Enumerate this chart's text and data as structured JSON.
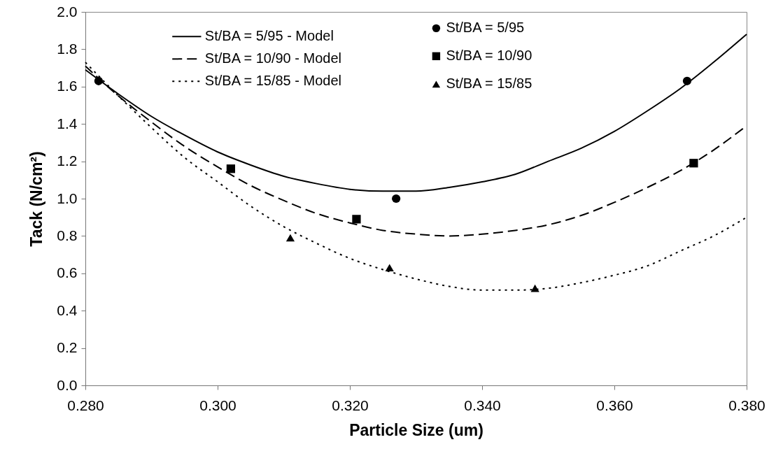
{
  "chart_data": {
    "type": "line",
    "xlabel": "Particle Size (um)",
    "ylabel": "Tack (N/cm²)",
    "xlim": [
      0.28,
      0.38
    ],
    "xticks": [
      {
        "value": 0.28,
        "label": "0.280"
      },
      {
        "value": 0.3,
        "label": "0.300"
      },
      {
        "value": 0.32,
        "label": "0.320"
      },
      {
        "value": 0.34,
        "label": "0.340"
      },
      {
        "value": 0.36,
        "label": "0.360"
      },
      {
        "value": 0.38,
        "label": "0.380"
      }
    ],
    "ylim": [
      0,
      2
    ],
    "yticks": [
      {
        "value": 0,
        "label": "0.0"
      },
      {
        "value": 0.2,
        "label": "0.2"
      },
      {
        "value": 0.4,
        "label": "0.4"
      },
      {
        "value": 0.6,
        "label": "0.6"
      },
      {
        "value": 0.8,
        "label": "0.8"
      },
      {
        "value": 1,
        "label": "1.0"
      },
      {
        "value": 1.2,
        "label": "1.2"
      },
      {
        "value": 1.4,
        "label": "1.4"
      },
      {
        "value": 1.6,
        "label": "1.6"
      },
      {
        "value": 1.8,
        "label": "1.8"
      },
      {
        "value": 2,
        "label": "2.0"
      }
    ],
    "grid": false,
    "legend": "top",
    "series": [
      {
        "name": "St/BA = 5/95 - Model",
        "type": "line",
        "line_style": "solid",
        "color": "#000000",
        "x": [
          0.28,
          0.285,
          0.29,
          0.295,
          0.3,
          0.305,
          0.31,
          0.315,
          0.32,
          0.325,
          0.33,
          0.335,
          0.34,
          0.345,
          0.35,
          0.355,
          0.36,
          0.365,
          0.37,
          0.375,
          0.38
        ],
        "values": [
          1.69,
          1.56,
          1.44,
          1.34,
          1.25,
          1.18,
          1.12,
          1.08,
          1.05,
          1.04,
          1.04,
          1.06,
          1.09,
          1.13,
          1.2,
          1.27,
          1.36,
          1.47,
          1.59,
          1.73,
          1.88
        ]
      },
      {
        "name": "St/BA = 10/90 - Model",
        "type": "line",
        "line_style": "dashed",
        "color": "#000000",
        "x": [
          0.28,
          0.285,
          0.29,
          0.295,
          0.3,
          0.305,
          0.31,
          0.315,
          0.32,
          0.325,
          0.33,
          0.335,
          0.34,
          0.345,
          0.35,
          0.355,
          0.36,
          0.365,
          0.37,
          0.375,
          0.38
        ],
        "values": [
          1.71,
          1.55,
          1.41,
          1.28,
          1.17,
          1.07,
          0.99,
          0.92,
          0.87,
          0.83,
          0.81,
          0.8,
          0.81,
          0.83,
          0.86,
          0.91,
          0.98,
          1.06,
          1.15,
          1.26,
          1.39
        ]
      },
      {
        "name": "St/BA = 15/85 - Model",
        "type": "line",
        "line_style": "dotted",
        "color": "#000000",
        "x": [
          0.28,
          0.285,
          0.29,
          0.295,
          0.3,
          0.305,
          0.31,
          0.315,
          0.32,
          0.325,
          0.33,
          0.335,
          0.34,
          0.345,
          0.35,
          0.355,
          0.36,
          0.365,
          0.37,
          0.375,
          0.38
        ],
        "values": [
          1.73,
          1.55,
          1.38,
          1.22,
          1.09,
          0.96,
          0.85,
          0.76,
          0.68,
          0.62,
          0.57,
          0.53,
          0.51,
          0.51,
          0.52,
          0.55,
          0.59,
          0.64,
          0.72,
          0.8,
          0.9
        ]
      },
      {
        "name": "St/BA = 5/95",
        "type": "scatter",
        "marker": "circle",
        "color": "#000000",
        "x": [
          0.282,
          0.327,
          0.371
        ],
        "values": [
          1.63,
          1.0,
          1.63
        ]
      },
      {
        "name": "St/BA = 10/90",
        "type": "scatter",
        "marker": "square",
        "color": "#000000",
        "x": [
          0.302,
          0.321,
          0.372
        ],
        "values": [
          1.16,
          0.89,
          1.19
        ]
      },
      {
        "name": "St/BA = 15/85",
        "type": "scatter",
        "marker": "triangle",
        "color": "#000000",
        "x": [
          0.311,
          0.326,
          0.348
        ],
        "values": [
          0.79,
          0.63,
          0.52
        ]
      }
    ]
  }
}
